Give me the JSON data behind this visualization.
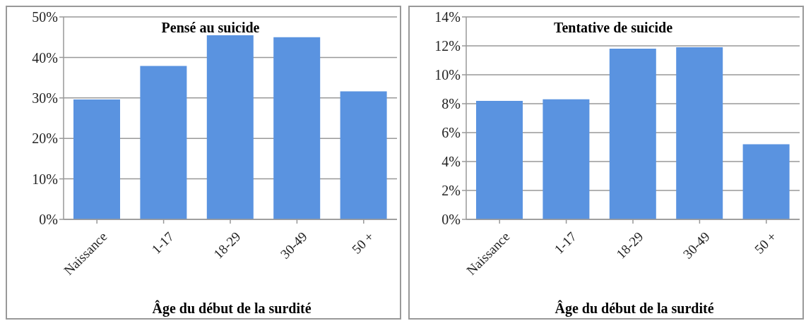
{
  "chart_data": [
    {
      "type": "bar",
      "title": "Pensé au suicide",
      "xlabel": "Âge du début de la surdité",
      "categories": [
        "Naissance",
        "1-17",
        "18-29",
        "30-49",
        "50 +"
      ],
      "values": [
        29.6,
        37.9,
        45.6,
        45.0,
        31.6
      ],
      "color": "#5a93e0",
      "ylim": [
        0,
        50
      ],
      "yticks": [
        {
          "value": 0,
          "label": "0%"
        },
        {
          "value": 10,
          "label": "10%"
        },
        {
          "value": 20,
          "label": "20%"
        },
        {
          "value": 30,
          "label": "30%"
        },
        {
          "value": 40,
          "label": "40%"
        },
        {
          "value": 50,
          "label": "50%"
        }
      ],
      "grid": "y"
    },
    {
      "type": "bar",
      "title": "Tentative de suicide",
      "xlabel": "Âge du début de la surdité",
      "categories": [
        "Naissance",
        "1-17",
        "18-29",
        "30-49",
        "50 +"
      ],
      "values": [
        8.2,
        8.3,
        11.8,
        11.9,
        5.2
      ],
      "color": "#5a93e0",
      "ylim": [
        0,
        14
      ],
      "yticks": [
        {
          "value": 0,
          "label": "0%"
        },
        {
          "value": 2,
          "label": "2%"
        },
        {
          "value": 4,
          "label": "4%"
        },
        {
          "value": 6,
          "label": "6%"
        },
        {
          "value": 8,
          "label": "8%"
        },
        {
          "value": 10,
          "label": "10%"
        },
        {
          "value": 12,
          "label": "12%"
        },
        {
          "value": 14,
          "label": "14%"
        }
      ],
      "grid": "y"
    }
  ]
}
